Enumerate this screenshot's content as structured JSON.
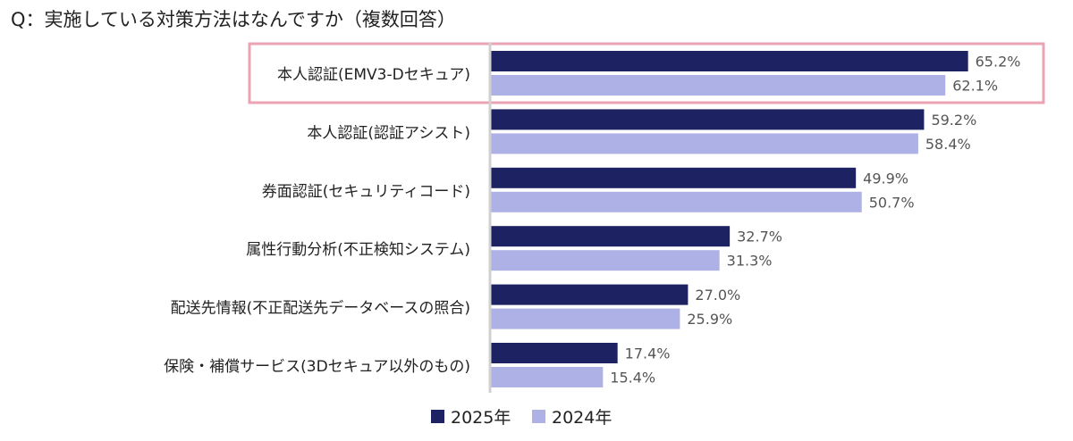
{
  "title": "Q：実施している対策方法はなんですか（複数回答）",
  "chart_data": {
    "type": "bar",
    "orientation": "horizontal",
    "title": "Q：実施している対策方法はなんですか（複数回答）",
    "categories": [
      "本人認証(EMV3-Dセキュア)",
      "本人認証(認証アシスト)",
      "券面認証(セキュリティコード)",
      "属性行動分析(不正検知システム)",
      "配送先情報(不正配送先データベースの照合)",
      "保険・補償サービス(3Dセキュア以外のもの)"
    ],
    "series": [
      {
        "name": "2025年",
        "color": "#1d2262",
        "values": [
          65.2,
          59.2,
          49.9,
          32.7,
          27.0,
          17.4
        ]
      },
      {
        "name": "2024年",
        "color": "#adb1e6",
        "values": [
          62.1,
          58.4,
          50.7,
          31.3,
          25.9,
          15.4
        ]
      }
    ],
    "value_labels": [
      [
        "65.2%",
        "59.2%",
        "49.9%",
        "32.7%",
        "27.0%",
        "17.4%"
      ],
      [
        "62.1%",
        "58.4%",
        "50.7%",
        "31.3%",
        "25.9%",
        "15.4%"
      ]
    ],
    "xlim": [
      0,
      70
    ],
    "grid": false,
    "legend_placement": "bottom",
    "highlighted_category": "本人認証(EMV3-Dセキュア)",
    "highlight_color": "#eba3b3"
  }
}
